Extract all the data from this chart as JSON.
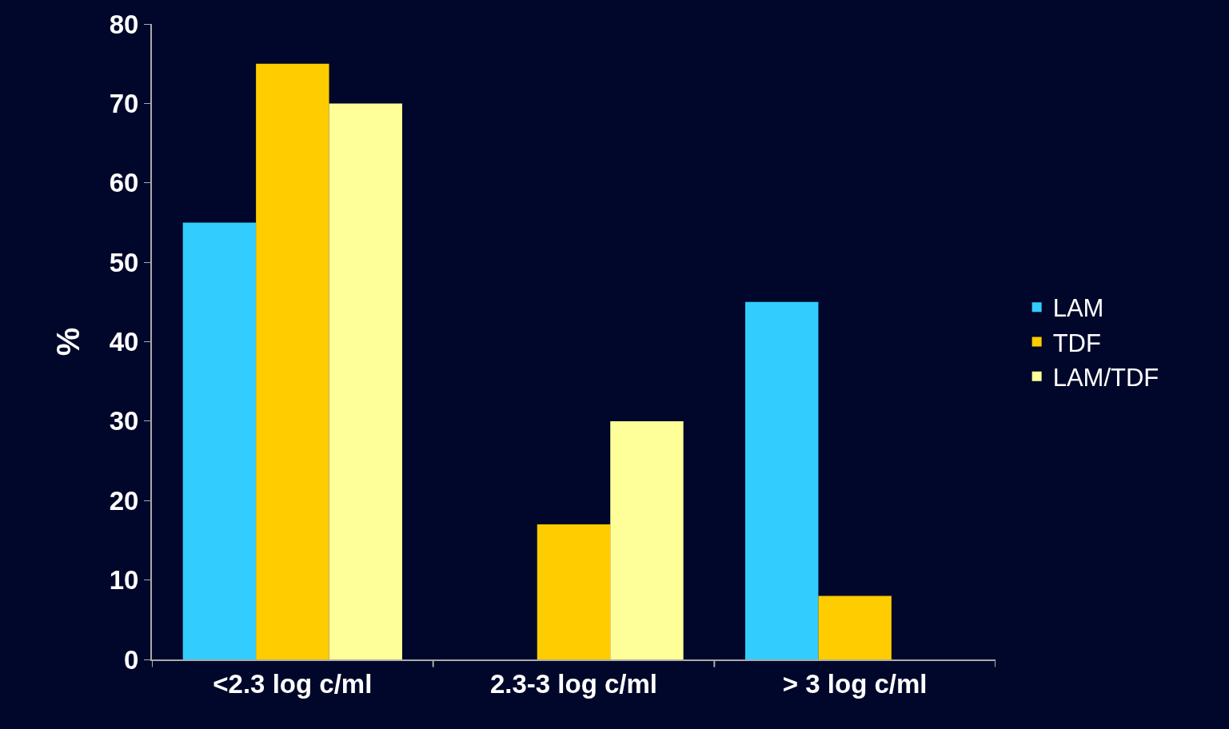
{
  "chart_data": {
    "type": "bar",
    "ylabel": "%",
    "categories": [
      "<2.3 log c/ml",
      "2.3-3 log c/ml",
      "> 3 log c/ml"
    ],
    "series": [
      {
        "name": "LAM",
        "color": "#33ccff",
        "values": [
          55,
          null,
          45
        ]
      },
      {
        "name": "TDF",
        "color": "#ffcc00",
        "values": [
          75,
          17,
          8
        ]
      },
      {
        "name": "LAM/TDF",
        "color": "#ffff99",
        "values": [
          70,
          30,
          null
        ]
      }
    ],
    "ylim": [
      0,
      80
    ],
    "yticks": [
      0,
      10,
      20,
      30,
      40,
      50,
      60,
      70,
      80
    ],
    "grid": false,
    "legend": "right"
  }
}
